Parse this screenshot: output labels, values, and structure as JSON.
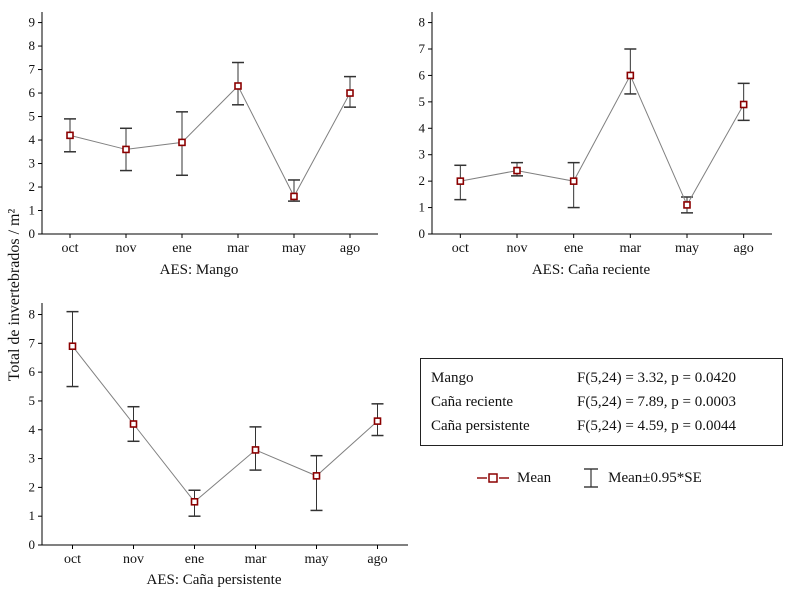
{
  "ylabel": "Total de invertebrados / m²",
  "colors": {
    "marker": "#8b0000",
    "line": "#808080",
    "axis": "#000000",
    "error": "#333333"
  },
  "chart_data": [
    {
      "type": "line",
      "title": "AES: Mango",
      "categories": [
        "oct",
        "nov",
        "ene",
        "mar",
        "may",
        "ago"
      ],
      "means": [
        4.2,
        3.6,
        3.9,
        6.3,
        1.6,
        6.0
      ],
      "upper": [
        4.9,
        4.5,
        5.2,
        7.3,
        2.3,
        6.7
      ],
      "lower": [
        3.5,
        2.7,
        2.5,
        5.5,
        1.4,
        5.4
      ],
      "ylim": [
        0,
        9
      ],
      "ylabel": "Total de invertebrados / m²",
      "legend_note": "means with 0.95*SE error bars"
    },
    {
      "type": "line",
      "title": "AES: Caña reciente",
      "categories": [
        "oct",
        "nov",
        "ene",
        "mar",
        "may",
        "ago"
      ],
      "means": [
        2.0,
        2.4,
        2.0,
        6.0,
        1.1,
        4.9
      ],
      "upper": [
        2.6,
        2.7,
        2.7,
        7.0,
        1.4,
        5.7
      ],
      "lower": [
        1.3,
        2.2,
        1.0,
        5.3,
        0.8,
        4.3
      ],
      "ylim": [
        0,
        8
      ],
      "ylabel": "Total de invertebrados / m²",
      "legend_note": "means with 0.95*SE error bars"
    },
    {
      "type": "line",
      "title": "AES: Caña persistente",
      "categories": [
        "oct",
        "nov",
        "ene",
        "mar",
        "may",
        "ago"
      ],
      "means": [
        6.9,
        4.2,
        1.5,
        3.3,
        2.4,
        4.3
      ],
      "upper": [
        8.1,
        4.8,
        1.9,
        4.1,
        3.1,
        4.9
      ],
      "lower": [
        5.5,
        3.6,
        1.0,
        2.6,
        1.2,
        3.8
      ],
      "ylim": [
        0,
        8
      ],
      "ylabel": "Total de invertebrados / m²",
      "legend_note": "means with 0.95*SE error bars"
    }
  ],
  "stats": {
    "rows": [
      {
        "label": "Mango",
        "value": "F(5,24) = 3.32, p = 0.0420"
      },
      {
        "label": "Caña reciente",
        "value": "F(5,24) = 7.89, p = 0.0003"
      },
      {
        "label": "Caña persistente",
        "value": "F(5,24) = 4.59, p = 0.0044"
      }
    ]
  },
  "legend": {
    "mean_label": "Mean",
    "se_label": "Mean±0.95*SE"
  }
}
